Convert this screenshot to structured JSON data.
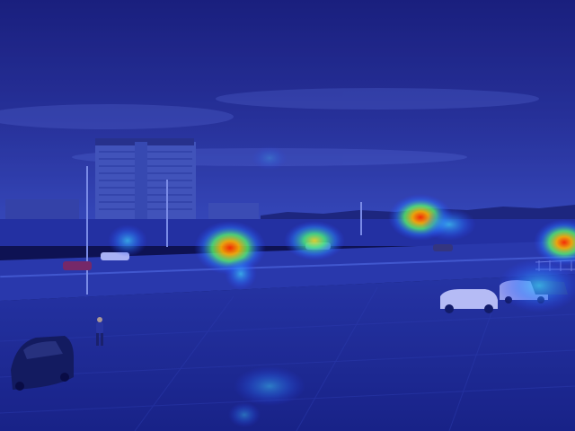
{
  "scene": {
    "description_type": "photo-with-attention-heatmap",
    "overlay": "heatmap",
    "colors": {
      "sky_top": "#1a1f6e",
      "sky_mid": "#2a3590",
      "horizon": "#3b4fb5",
      "ground": "#1c2a86",
      "road": "#2a3aa0",
      "plaza": "#2230a0",
      "heat_low": "#2b6cff",
      "heat_mid": "#39ff8a",
      "heat_high": "#ffd21f",
      "heat_peak": "#ff2a00"
    },
    "heat_spots": [
      {
        "label": "car-left-near-pole",
        "intensity": 0.55
      },
      {
        "label": "car-center-left",
        "intensity": 0.9
      },
      {
        "label": "vehicles-center",
        "intensity": 0.6
      },
      {
        "label": "vehicles-center-right",
        "intensity": 0.95
      },
      {
        "label": "vehicles-right-edge",
        "intensity": 1.0
      },
      {
        "label": "parked-cars-right",
        "intensity": 0.5
      },
      {
        "label": "bottom-center",
        "intensity": 0.35
      }
    ]
  }
}
